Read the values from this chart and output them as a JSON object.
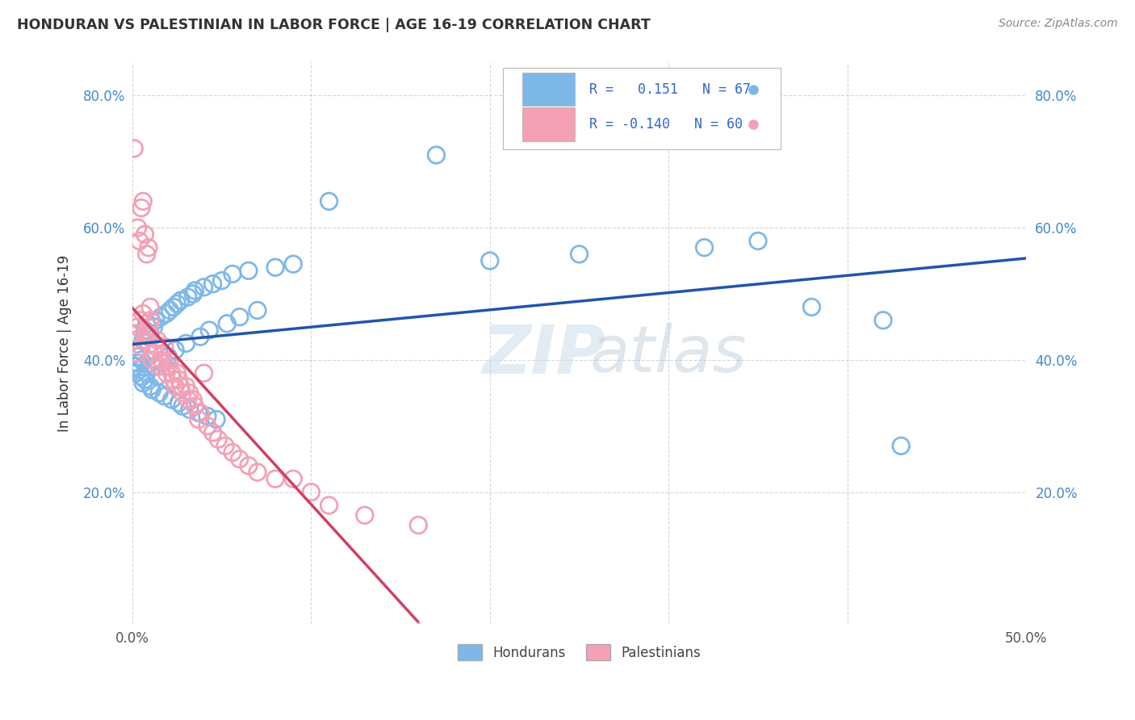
{
  "title": "HONDURAN VS PALESTINIAN IN LABOR FORCE | AGE 16-19 CORRELATION CHART",
  "source": "Source: ZipAtlas.com",
  "ylabel": "In Labor Force | Age 16-19",
  "xlim": [
    0.0,
    0.5
  ],
  "ylim": [
    0.0,
    0.85
  ],
  "xticks": [
    0.0,
    0.1,
    0.2,
    0.3,
    0.4,
    0.5
  ],
  "xticklabels": [
    "0.0%",
    "",
    "",
    "",
    "",
    "50.0%"
  ],
  "yticks": [
    0.0,
    0.2,
    0.4,
    0.6,
    0.8
  ],
  "yticklabels": [
    "",
    "20.0%",
    "40.0%",
    "60.0%",
    "80.0%"
  ],
  "honduran_color": "#7EB8E8",
  "honduran_edge": "#5090C8",
  "palestinian_color": "#F4A0B5",
  "palestinian_edge": "#D86080",
  "honduran_line_color": "#2255AA",
  "palestinian_line_solid": "#D04060",
  "palestinian_line_dash": "#F0B0C0",
  "honduran_R": 0.151,
  "honduran_N": 67,
  "palestinian_R": -0.14,
  "palestinian_N": 60,
  "legend_hondurans": "Hondurans",
  "legend_palestinians": "Palestinians",
  "watermark_zip": "ZIP",
  "watermark_atlas": "atlas",
  "honduran_x": [
    0.001,
    0.002,
    0.002,
    0.003,
    0.003,
    0.004,
    0.004,
    0.005,
    0.005,
    0.005,
    0.006,
    0.006,
    0.007,
    0.007,
    0.008,
    0.008,
    0.009,
    0.01,
    0.01,
    0.011,
    0.012,
    0.012,
    0.013,
    0.014,
    0.015,
    0.016,
    0.017,
    0.018,
    0.019,
    0.02,
    0.021,
    0.022,
    0.023,
    0.024,
    0.025,
    0.026,
    0.027,
    0.028,
    0.03,
    0.031,
    0.032,
    0.034,
    0.035,
    0.037,
    0.038,
    0.04,
    0.042,
    0.043,
    0.045,
    0.047,
    0.05,
    0.053,
    0.056,
    0.06,
    0.065,
    0.07,
    0.08,
    0.09,
    0.11,
    0.17,
    0.2,
    0.25,
    0.32,
    0.35,
    0.38,
    0.42,
    0.43
  ],
  "honduran_y": [
    0.39,
    0.38,
    0.41,
    0.395,
    0.405,
    0.415,
    0.385,
    0.4,
    0.42,
    0.375,
    0.43,
    0.365,
    0.445,
    0.37,
    0.455,
    0.38,
    0.435,
    0.36,
    0.44,
    0.355,
    0.45,
    0.39,
    0.46,
    0.375,
    0.35,
    0.465,
    0.395,
    0.345,
    0.47,
    0.405,
    0.475,
    0.34,
    0.48,
    0.415,
    0.485,
    0.335,
    0.49,
    0.33,
    0.425,
    0.495,
    0.325,
    0.5,
    0.505,
    0.32,
    0.435,
    0.51,
    0.315,
    0.445,
    0.515,
    0.31,
    0.52,
    0.455,
    0.53,
    0.465,
    0.535,
    0.475,
    0.54,
    0.545,
    0.64,
    0.71,
    0.55,
    0.56,
    0.57,
    0.58,
    0.48,
    0.46,
    0.27
  ],
  "palestinian_x": [
    0.001,
    0.001,
    0.002,
    0.002,
    0.003,
    0.003,
    0.004,
    0.004,
    0.005,
    0.005,
    0.006,
    0.006,
    0.007,
    0.007,
    0.008,
    0.008,
    0.009,
    0.009,
    0.01,
    0.01,
    0.011,
    0.012,
    0.013,
    0.014,
    0.015,
    0.016,
    0.017,
    0.018,
    0.019,
    0.02,
    0.021,
    0.022,
    0.023,
    0.024,
    0.025,
    0.026,
    0.027,
    0.028,
    0.03,
    0.031,
    0.032,
    0.034,
    0.035,
    0.037,
    0.038,
    0.04,
    0.042,
    0.045,
    0.048,
    0.052,
    0.056,
    0.06,
    0.065,
    0.07,
    0.08,
    0.09,
    0.1,
    0.11,
    0.13,
    0.16
  ],
  "palestinian_y": [
    0.43,
    0.72,
    0.41,
    0.44,
    0.45,
    0.6,
    0.46,
    0.58,
    0.42,
    0.63,
    0.47,
    0.64,
    0.43,
    0.59,
    0.44,
    0.56,
    0.45,
    0.57,
    0.46,
    0.48,
    0.4,
    0.41,
    0.42,
    0.43,
    0.39,
    0.4,
    0.41,
    0.42,
    0.38,
    0.39,
    0.4,
    0.38,
    0.37,
    0.36,
    0.38,
    0.37,
    0.36,
    0.35,
    0.36,
    0.34,
    0.35,
    0.34,
    0.33,
    0.31,
    0.32,
    0.38,
    0.3,
    0.29,
    0.28,
    0.27,
    0.26,
    0.25,
    0.24,
    0.23,
    0.22,
    0.22,
    0.2,
    0.18,
    0.165,
    0.15
  ]
}
